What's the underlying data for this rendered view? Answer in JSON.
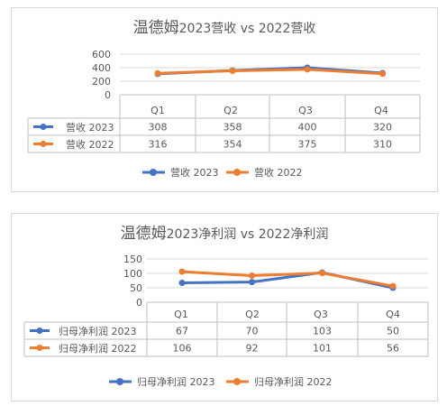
{
  "chart_data": [
    {
      "type": "line",
      "title_big": "温德姆",
      "title_rest": "2023营收 vs 2022营收",
      "categories": [
        "Q1",
        "Q2",
        "Q3",
        "Q4"
      ],
      "y_ticks": [
        "600",
        "400",
        "200",
        "0"
      ],
      "ylim": [
        0,
        600
      ],
      "grid": true,
      "legend_position": "bottom",
      "series": [
        {
          "name": "营收 2023",
          "color": "#4472c4",
          "values": [
            308,
            358,
            400,
            320
          ]
        },
        {
          "name": "营收 2022",
          "color": "#ed7d31",
          "values": [
            316,
            354,
            375,
            310
          ]
        }
      ]
    },
    {
      "type": "line",
      "title_big": "温德姆",
      "title_rest": "2023净利润 vs 2022净利润",
      "categories": [
        "Q1",
        "Q2",
        "Q3",
        "Q4"
      ],
      "y_ticks": [
        "150",
        "100",
        "50",
        "0"
      ],
      "ylim": [
        0,
        150
      ],
      "grid": true,
      "legend_position": "bottom",
      "series": [
        {
          "name": "归母净利润 2023",
          "color": "#4472c4",
          "values": [
            67,
            70,
            103,
            50
          ]
        },
        {
          "name": "归母净利润 2022",
          "color": "#ed7d31",
          "values": [
            106,
            92,
            101,
            56
          ]
        }
      ]
    }
  ]
}
